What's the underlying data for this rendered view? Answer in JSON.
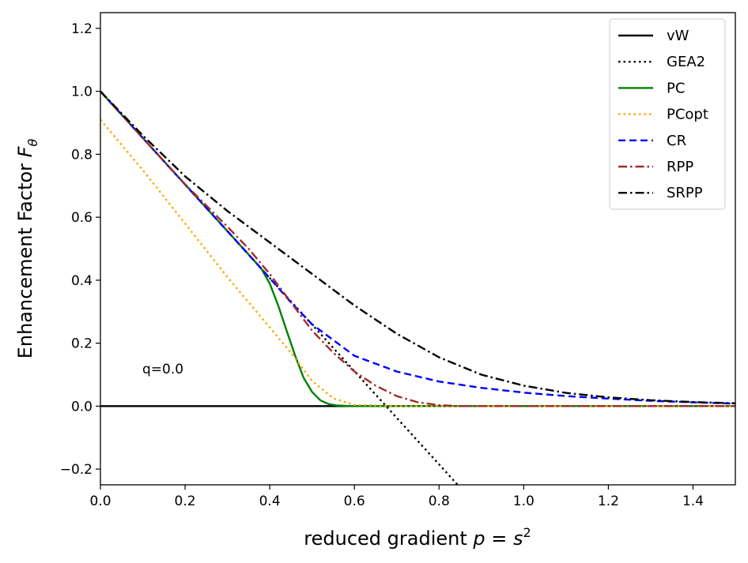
{
  "chart_data": {
    "type": "line",
    "title": "",
    "xlabel_prefix": "reduced gradient ",
    "xlabel_math": "p = s",
    "xlabel_sup": "2",
    "ylabel_prefix": "Enhancement Factor  ",
    "ylabel_math": "F",
    "ylabel_sub": "θ",
    "xlim": [
      0.0,
      1.5
    ],
    "ylim": [
      -0.25,
      1.25
    ],
    "xticks": [
      0.0,
      0.2,
      0.4,
      0.6,
      0.8,
      1.0,
      1.2,
      1.4
    ],
    "xtick_labels": [
      "0.0",
      "0.2",
      "0.4",
      "0.6",
      "0.8",
      "1.0",
      "1.2",
      "1.4"
    ],
    "yticks": [
      -0.2,
      0.0,
      0.2,
      0.4,
      0.6,
      0.8,
      1.0,
      1.2
    ],
    "ytick_labels": [
      "−0.2",
      "0.0",
      "0.2",
      "0.4",
      "0.6",
      "0.8",
      "1.0",
      "1.2"
    ],
    "annotation": "q=0.0",
    "legend_position": "top-right",
    "series": [
      {
        "name": "vW",
        "color": "#000000",
        "dash": "solid",
        "x": [
          0.0,
          0.5,
          1.0,
          1.5
        ],
        "y": [
          0,
          0,
          0,
          0
        ]
      },
      {
        "name": "GEA2",
        "color": "#000000",
        "dash": "dotted",
        "x": [
          0.0,
          0.1,
          0.2,
          0.3,
          0.4,
          0.5,
          0.6,
          0.7,
          0.8,
          0.85
        ],
        "y": [
          1.0,
          0.852,
          0.704,
          0.556,
          0.407,
          0.259,
          0.111,
          -0.037,
          -0.185,
          -0.259
        ]
      },
      {
        "name": "PC",
        "color": "#008000",
        "dash": "solid",
        "x": [
          0.0,
          0.1,
          0.2,
          0.3,
          0.36,
          0.38,
          0.4,
          0.42,
          0.44,
          0.46,
          0.48,
          0.5,
          0.52,
          0.54,
          0.56,
          0.58,
          0.6,
          0.7,
          0.8,
          1.0,
          1.2,
          1.5
        ],
        "y": [
          1.0,
          0.852,
          0.704,
          0.556,
          0.467,
          0.437,
          0.39,
          0.32,
          0.24,
          0.16,
          0.09,
          0.045,
          0.018,
          0.006,
          0.002,
          0.0005,
          0.0,
          0.0,
          0.0,
          0.0,
          0.0,
          0.0
        ]
      },
      {
        "name": "PCopt",
        "color": "#FFA500",
        "dash": "dotted",
        "x": [
          0.0,
          0.1,
          0.2,
          0.3,
          0.4,
          0.45,
          0.5,
          0.55,
          0.6,
          0.7,
          0.8,
          1.0,
          1.2,
          1.5
        ],
        "y": [
          0.91,
          0.75,
          0.58,
          0.41,
          0.25,
          0.17,
          0.08,
          0.025,
          0.004,
          0.0,
          0.0,
          0.0,
          0.0,
          0.0
        ]
      },
      {
        "name": "CR",
        "color": "#0000FF",
        "dash": "dashed",
        "x": [
          0.0,
          0.1,
          0.2,
          0.3,
          0.38,
          0.45,
          0.5,
          0.6,
          0.7,
          0.8,
          0.9,
          1.0,
          1.1,
          1.2,
          1.3,
          1.4,
          1.5
        ],
        "y": [
          1.0,
          0.852,
          0.704,
          0.556,
          0.437,
          0.33,
          0.26,
          0.16,
          0.11,
          0.078,
          0.058,
          0.043,
          0.032,
          0.024,
          0.017,
          0.012,
          0.008
        ]
      },
      {
        "name": "RPP",
        "color": "#A52A2A",
        "dash": "dashdot",
        "x": [
          0.0,
          0.1,
          0.2,
          0.3,
          0.35,
          0.4,
          0.45,
          0.5,
          0.55,
          0.6,
          0.65,
          0.7,
          0.75,
          0.8,
          0.85,
          1.0,
          1.2,
          1.5
        ],
        "y": [
          1.0,
          0.852,
          0.705,
          0.57,
          0.5,
          0.42,
          0.33,
          0.24,
          0.17,
          0.11,
          0.065,
          0.032,
          0.012,
          0.003,
          0.0,
          0.0,
          0.0,
          0.0
        ]
      },
      {
        "name": "SRPP",
        "color": "#000000",
        "dash": "dashdot",
        "x": [
          0.0,
          0.1,
          0.2,
          0.3,
          0.4,
          0.5,
          0.6,
          0.7,
          0.8,
          0.9,
          1.0,
          1.1,
          1.2,
          1.3,
          1.4,
          1.5
        ],
        "y": [
          1.0,
          0.86,
          0.73,
          0.62,
          0.52,
          0.42,
          0.32,
          0.23,
          0.155,
          0.1,
          0.065,
          0.042,
          0.028,
          0.019,
          0.013,
          0.009
        ]
      }
    ]
  }
}
